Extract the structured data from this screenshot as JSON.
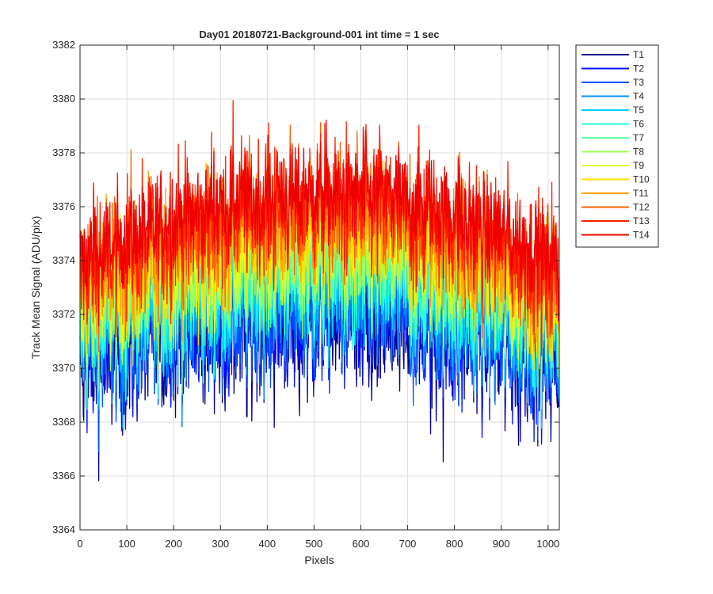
{
  "figure": {
    "title": "Day01 20180721-Background-001 int time = 1 sec"
  },
  "chart_data": {
    "type": "line",
    "title": "Day01 20180721-Background-001 int time = 1 sec",
    "xlabel": "Pixels",
    "ylabel": "Track Mean Signal (ADU/pix)",
    "xlim": [
      0,
      1024
    ],
    "ylim": [
      3364,
      3382
    ],
    "xticks": [
      0,
      100,
      200,
      300,
      400,
      500,
      600,
      700,
      800,
      900,
      1000
    ],
    "yticks": [
      3364,
      3366,
      3368,
      3370,
      3372,
      3374,
      3376,
      3378,
      3380,
      3382
    ],
    "grid": true,
    "legend_position": "outside-top-right",
    "series": [
      {
        "name": "T1",
        "color": "#00008f",
        "edge": 3370.0,
        "center": 3371.6,
        "noise": 1.8
      },
      {
        "name": "T2",
        "color": "#0010ff",
        "edge": 3370.3,
        "center": 3371.9,
        "noise": 1.7
      },
      {
        "name": "T3",
        "color": "#0050ff",
        "edge": 3370.6,
        "center": 3372.3,
        "noise": 1.7
      },
      {
        "name": "T4",
        "color": "#0090ff",
        "edge": 3370.9,
        "center": 3372.7,
        "noise": 1.6
      },
      {
        "name": "T5",
        "color": "#00d0ff",
        "edge": 3371.2,
        "center": 3373.1,
        "noise": 1.6
      },
      {
        "name": "T6",
        "color": "#20ffe0",
        "edge": 3371.5,
        "center": 3373.5,
        "noise": 1.6
      },
      {
        "name": "T7",
        "color": "#60ffa0",
        "edge": 3371.8,
        "center": 3373.9,
        "noise": 1.6
      },
      {
        "name": "T8",
        "color": "#a0ff60",
        "edge": 3372.1,
        "center": 3374.3,
        "noise": 1.6
      },
      {
        "name": "T9",
        "color": "#e0ff20",
        "edge": 3372.4,
        "center": 3374.7,
        "noise": 1.6
      },
      {
        "name": "T10",
        "color": "#ffdf00",
        "edge": 3372.7,
        "center": 3375.1,
        "noise": 1.6
      },
      {
        "name": "T11",
        "color": "#ffa000",
        "edge": 3373.0,
        "center": 3375.5,
        "noise": 1.6
      },
      {
        "name": "T12",
        "color": "#ff6000",
        "edge": 3373.3,
        "center": 3375.9,
        "noise": 1.7
      },
      {
        "name": "T13",
        "color": "#ff2000",
        "edge": 3373.6,
        "center": 3376.2,
        "noise": 1.6
      },
      {
        "name": "T14",
        "color": "#ef0000",
        "edge": 3373.9,
        "center": 3376.5,
        "noise": 1.2
      }
    ]
  }
}
